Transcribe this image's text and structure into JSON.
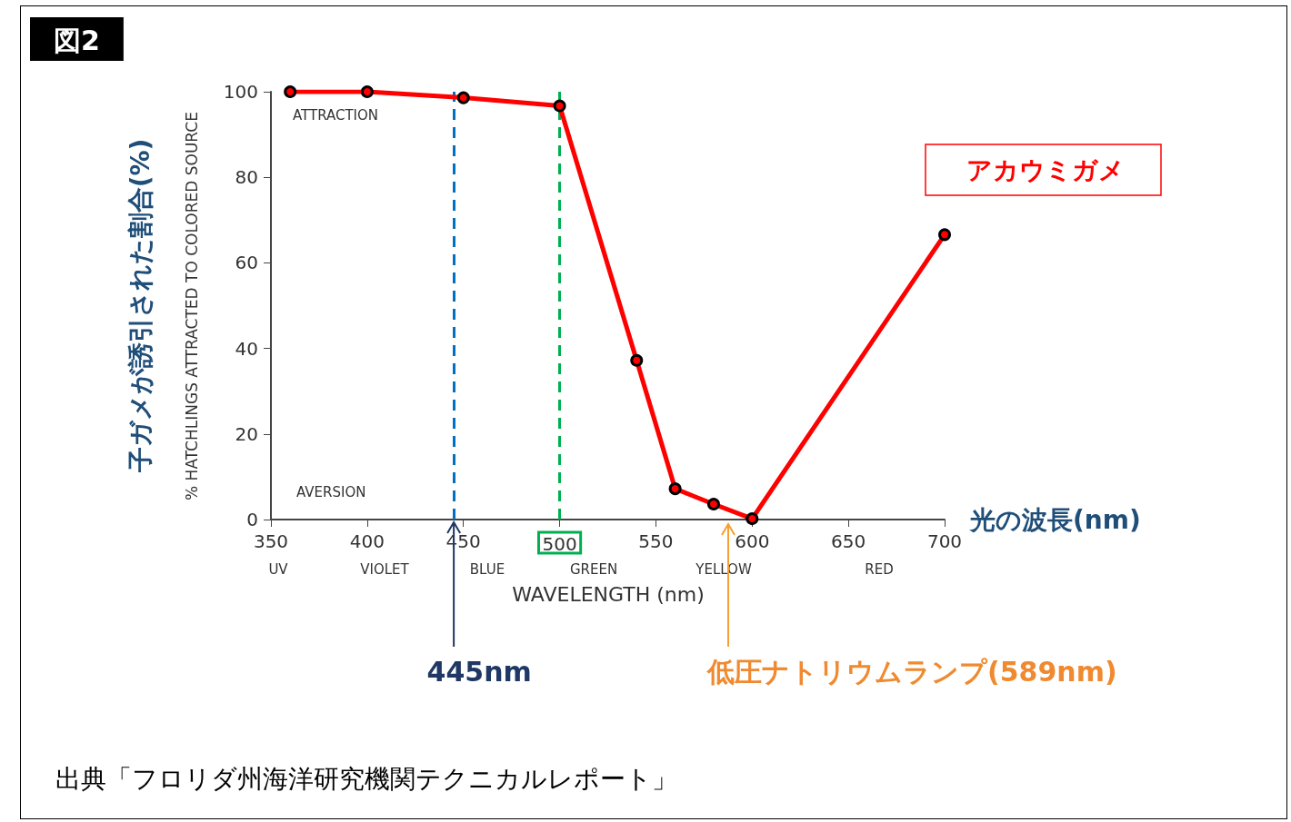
{
  "chart_data": {
    "type": "line",
    "title": "図2",
    "xlabel": "光の波長(nm)",
    "ylabel": "子ガメが誘引された割合(%)",
    "x": [
      360,
      400,
      450,
      500,
      540,
      560,
      580,
      600,
      700
    ],
    "series": [
      {
        "name": "アカウミガメ",
        "color": "#ff0000",
        "values": [
          100,
          100,
          98.6,
          96.7,
          37.2,
          7.2,
          3.6,
          0.2,
          66.6
        ]
      }
    ],
    "xlim": [
      350,
      700
    ],
    "xticks": [
      350,
      400,
      450,
      500,
      550,
      600,
      650,
      700
    ],
    "ylim": [
      0,
      100
    ],
    "yticks": [
      0,
      20,
      40,
      60,
      80,
      100
    ],
    "grid": false,
    "legend": "top right",
    "marker": "circle",
    "line_style": "solid",
    "ref_lines": [
      {
        "axis": "x",
        "value": 445,
        "color": "#0070c0",
        "line_style": "dashed"
      },
      {
        "axis": "x",
        "value": 500,
        "color": "#00b050",
        "line_style": "dashed"
      }
    ],
    "annotations": [
      "% HATCHLINGS ATTRACTED TO COLORED SOURCE",
      "ATTRACTION",
      "AVERSION",
      "UV",
      "VIOLET",
      "BLUE",
      "GREEN",
      "YELLOW",
      "RED",
      "WAVELENGTH (nm)",
      {
        "text": "445nm",
        "x": 445,
        "y": 0
      },
      "低圧ナトリウムランプ(589nm)",
      "出典「フロリダ州海洋研究機関テクニカルレポート」"
    ]
  }
}
